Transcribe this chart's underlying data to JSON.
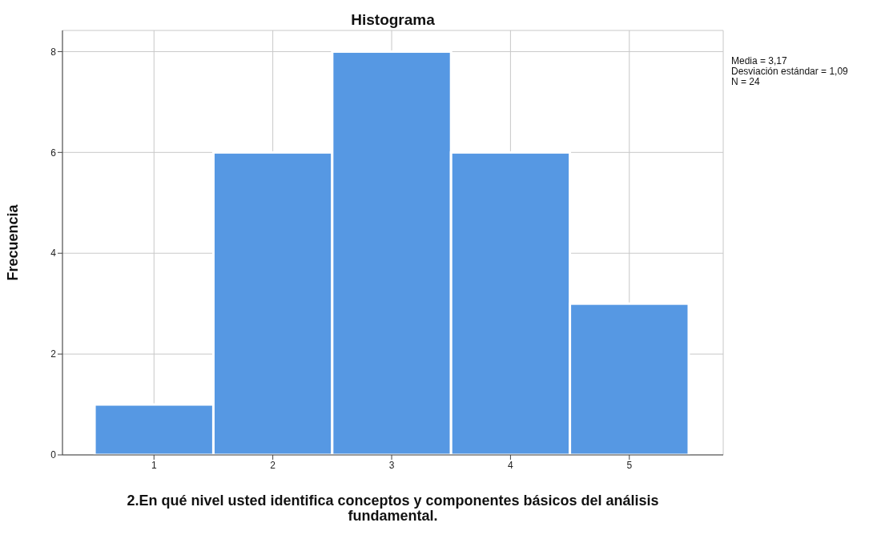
{
  "chart_data": {
    "type": "histogram",
    "title": "Histograma",
    "xlabel": "2.En qué nivel usted identifica conceptos y componentes básicos del análisis fundamental.",
    "ylabel": "Frecuencia",
    "bins": [
      0.5,
      1.5,
      2.5,
      3.5,
      4.5,
      5.5
    ],
    "values": [
      1,
      6,
      8,
      6,
      3
    ],
    "color": "#5698e3",
    "xlim": [
      0.23,
      5.79
    ],
    "xticks": [
      1,
      2,
      3,
      4,
      5
    ],
    "ylim": [
      0,
      8.42
    ],
    "yticks": [
      0,
      2,
      4,
      6,
      8
    ],
    "grid": true,
    "annotations": [
      "Media = 3,17",
      "Desviación estándar = 1,09",
      "N = 24"
    ]
  }
}
